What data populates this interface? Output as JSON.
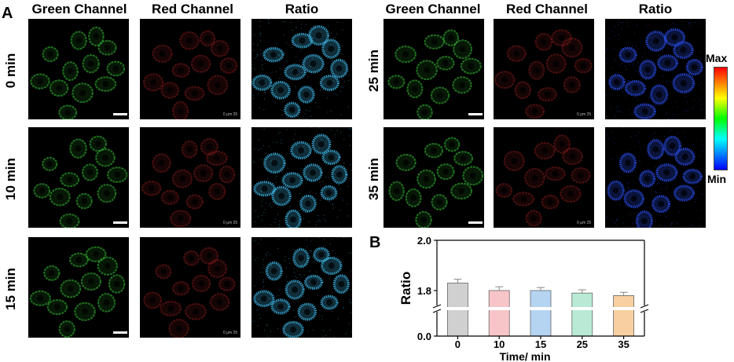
{
  "figure": {
    "panel_a_label": "A",
    "panel_b_label": "B",
    "column_headers_left": [
      "Green Channel",
      "Red Channel",
      "Ratio"
    ],
    "column_headers_right": [
      "Green Channel",
      "Red Channel",
      "Ratio"
    ],
    "row_labels_left": [
      "0 min",
      "10 min",
      "15 min"
    ],
    "row_labels_right": [
      "25 min",
      "35 min"
    ],
    "colorbar": {
      "max_label": "Max",
      "min_label": "Min"
    },
    "scale_text": "0 μm 25",
    "colors": {
      "green": "#39c439",
      "red": "#c02828",
      "ratio_cyan": "#3fb7e6",
      "ratio_blue": "#2a4ff0"
    }
  },
  "chart_data": {
    "type": "bar",
    "categories": [
      "0",
      "10",
      "15",
      "25",
      "35"
    ],
    "values": [
      1.83,
      1.8,
      1.8,
      1.79,
      1.78
    ],
    "errors": [
      0.015,
      0.015,
      0.012,
      0.013,
      0.013
    ],
    "bar_colors": [
      "#d0d0d0",
      "#f7c5c8",
      "#b5d4f2",
      "#b8ead5",
      "#f7cfa0"
    ],
    "xlabel": "Time/ min",
    "ylabel": "Ratio",
    "yticks": [
      "0.0",
      "1.8",
      "2.0"
    ],
    "axis_break": true,
    "ylim": [
      0,
      2.0
    ]
  }
}
